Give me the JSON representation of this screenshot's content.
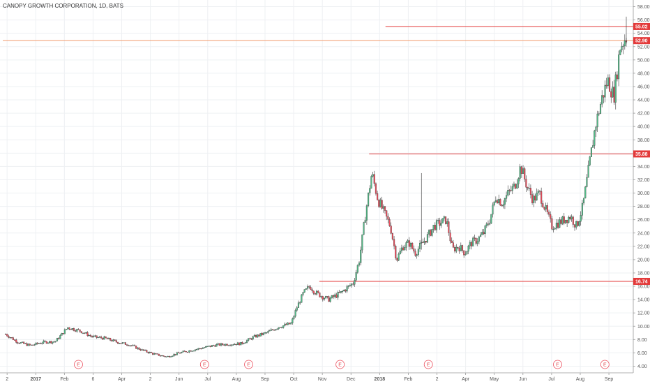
{
  "chart_data": {
    "type": "candlestick",
    "title": "CANOPY GROWTH CORPORATION, 1D, BATS",
    "y_range": [
      3,
      59
    ],
    "y_ticks": [
      4,
      6,
      8,
      10,
      12,
      14,
      16,
      18,
      20,
      22,
      24,
      26,
      28,
      30,
      32,
      34,
      36,
      38,
      40,
      42,
      44,
      46,
      48,
      50,
      52,
      54,
      56,
      58
    ],
    "x_labels": [
      "2",
      "2017",
      "Feb",
      "6",
      "Apr",
      "2",
      "Jun",
      "Jul",
      "Aug",
      "Sep",
      "Oct",
      "Nov",
      "Dec",
      "2018",
      "Feb",
      "2",
      "Apr",
      "May",
      "Jun",
      "Jul",
      "Aug",
      "Sep"
    ],
    "price_path": [
      [
        0,
        8.8
      ],
      [
        2,
        7.6
      ],
      [
        4,
        7.1
      ],
      [
        6,
        7.6
      ],
      [
        8,
        7.7
      ],
      [
        10,
        9.8
      ],
      [
        12,
        9.3
      ],
      [
        14,
        8.4
      ],
      [
        16,
        8.2
      ],
      [
        18,
        7.6
      ],
      [
        20,
        7.2
      ],
      [
        22,
        6.4
      ],
      [
        24,
        5.8
      ],
      [
        26,
        5.4
      ],
      [
        28,
        6.0
      ],
      [
        30,
        6.4
      ],
      [
        32,
        6.8
      ],
      [
        34,
        7.2
      ],
      [
        36,
        7.3
      ],
      [
        38,
        7.4
      ],
      [
        40,
        8.4
      ],
      [
        42,
        9.0
      ],
      [
        44,
        9.9
      ],
      [
        46,
        10.4
      ],
      [
        47,
        13.0
      ],
      [
        48,
        15.0
      ],
      [
        49,
        16.0
      ],
      [
        50,
        15.0
      ],
      [
        52,
        14.0
      ],
      [
        54,
        15.0
      ],
      [
        56,
        16.5
      ],
      [
        57,
        20.0
      ],
      [
        58,
        27.0
      ],
      [
        59,
        33.0
      ],
      [
        60,
        29.0
      ],
      [
        61,
        27.0
      ],
      [
        62,
        25.0
      ],
      [
        63,
        20.0
      ],
      [
        64,
        22.0
      ],
      [
        65,
        22.5
      ],
      [
        66,
        21.0
      ],
      [
        68,
        23.5
      ],
      [
        69,
        25.0
      ],
      [
        70,
        25.5
      ],
      [
        71,
        26.0
      ],
      [
        72,
        21.5
      ],
      [
        73,
        22.0
      ],
      [
        74,
        21.0
      ],
      [
        75,
        22.5
      ],
      [
        76,
        23.0
      ],
      [
        77,
        24.0
      ],
      [
        78,
        26.0
      ],
      [
        79,
        29.5
      ],
      [
        80,
        28.5
      ],
      [
        81,
        30.0
      ],
      [
        82,
        31.0
      ],
      [
        83,
        34.0
      ],
      [
        84,
        31.0
      ],
      [
        85,
        29.0
      ],
      [
        86,
        30.0
      ],
      [
        87,
        27.5
      ],
      [
        88,
        25.0
      ],
      [
        89,
        25.5
      ],
      [
        90,
        26.0
      ],
      [
        91,
        26.5
      ],
      [
        92,
        25.0
      ],
      [
        93,
        28.0
      ],
      [
        94,
        34.0
      ],
      [
        95,
        40.0
      ],
      [
        96,
        44.0
      ],
      [
        97,
        47.0
      ],
      [
        98,
        44.5
      ],
      [
        99,
        52.0
      ],
      [
        100,
        53.5
      ]
    ],
    "spikes": [
      {
        "x": 67,
        "high": 33.0,
        "low": 21.5
      },
      {
        "x": 100,
        "high": 56.5,
        "low": 52.0
      }
    ],
    "horizontal_lines": [
      {
        "value": 55.02,
        "label": "55.02",
        "start_x": 0.607
      },
      {
        "value": 52.9,
        "label": "52.90",
        "start_x": 0.0
      },
      {
        "value": 35.88,
        "label": "35.88",
        "start_x": 0.581
      },
      {
        "value": 16.74,
        "label": "16.74",
        "start_x": 0.502
      }
    ],
    "earnings_markers": [
      "E",
      "E",
      "E",
      "E",
      "E",
      "E",
      "E"
    ],
    "colors": {
      "up": "#53b987",
      "down": "#eb4d5c",
      "wick": "#333333",
      "level_line": "#e33a3a",
      "price_line": "#f29a6b",
      "tag_bg": "#e33a3a",
      "grid": "#eef0f3",
      "axis": "#555555"
    },
    "grid": true
  }
}
